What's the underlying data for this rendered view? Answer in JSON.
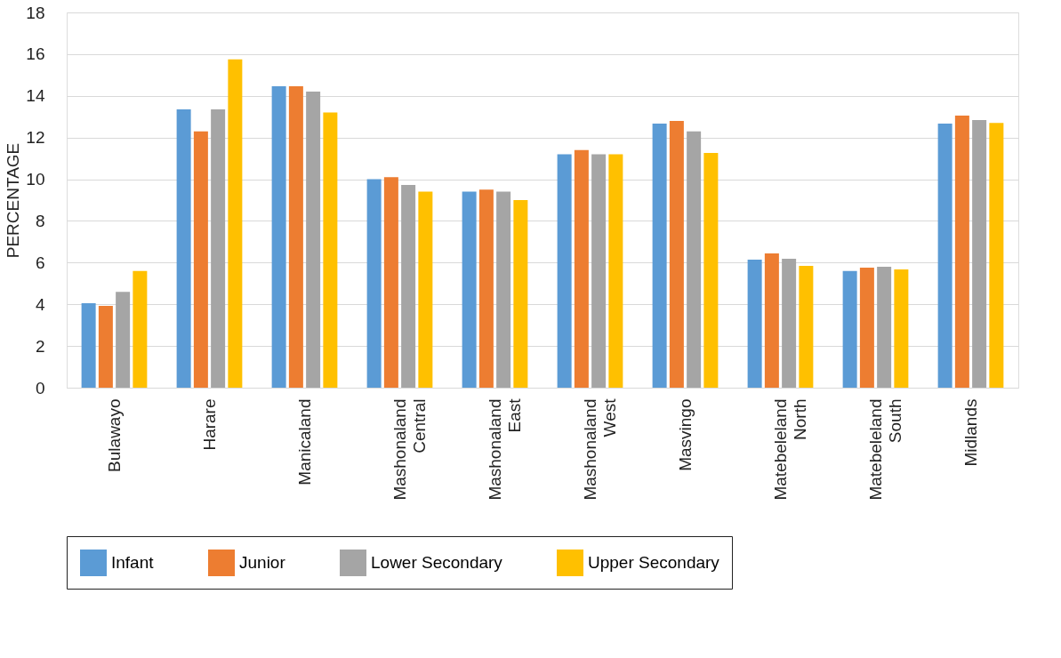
{
  "chart_data": {
    "type": "bar",
    "ylabel": "PERCENTAGE",
    "categories": [
      "Bulawayo",
      "Harare",
      "Manicaland",
      "Mashonaland Central",
      "Mashonaland East",
      "Mashonaland West",
      "Masvingo",
      "Matebeleland North",
      "Matebeleland South",
      "Midlands"
    ],
    "series": [
      {
        "name": "Infant",
        "color": "#5b9bd5",
        "values": [
          4.05,
          13.35,
          14.46,
          10.0,
          9.4,
          11.2,
          12.67,
          6.14,
          5.6,
          12.67
        ]
      },
      {
        "name": "Junior",
        "color": "#ed7d31",
        "values": [
          3.92,
          12.3,
          14.46,
          10.1,
          9.5,
          11.4,
          12.8,
          6.44,
          5.76,
          13.05
        ]
      },
      {
        "name": "Lower Secondary",
        "color": "#a5a5a5",
        "values": [
          4.6,
          13.35,
          14.2,
          9.73,
          9.4,
          11.2,
          12.3,
          6.19,
          5.8,
          12.84
        ]
      },
      {
        "name": "Upper Secondary",
        "color": "#ffc000",
        "values": [
          5.6,
          15.75,
          13.2,
          9.4,
          9.0,
          11.2,
          11.26,
          5.84,
          5.67,
          12.7
        ]
      }
    ],
    "ylim": [
      0,
      18
    ],
    "yticks": [
      0,
      2,
      4,
      6,
      8,
      10,
      12,
      14,
      16,
      18
    ],
    "grid": "y",
    "legend": "bottom"
  }
}
